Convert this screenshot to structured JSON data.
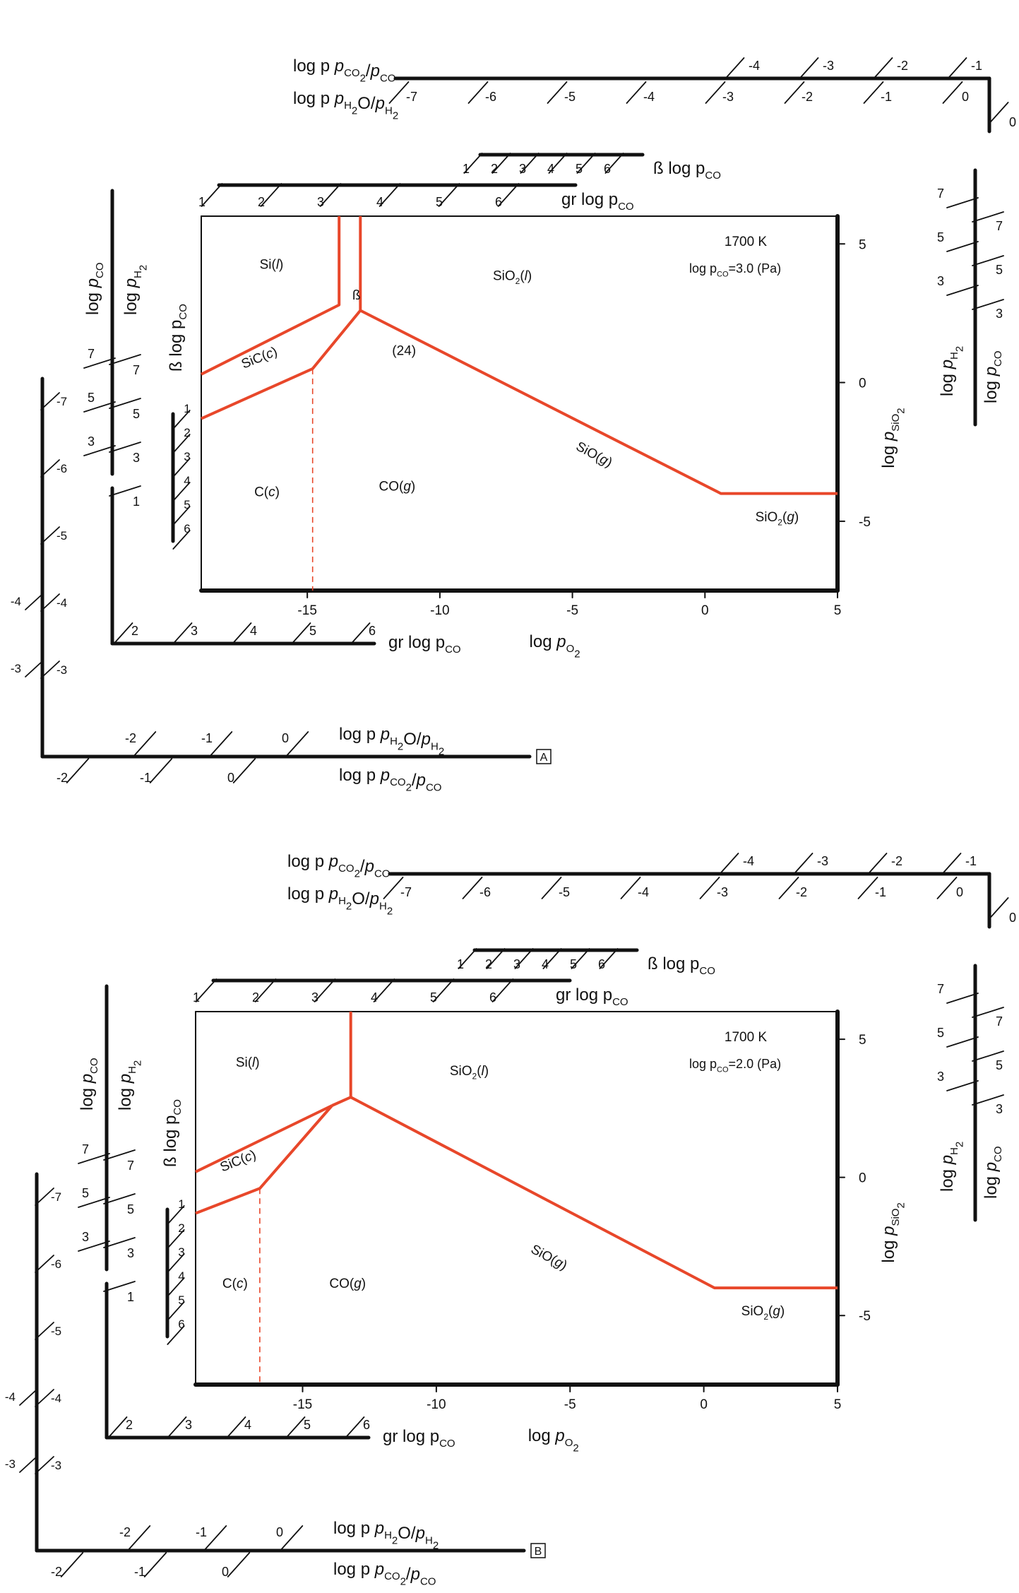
{
  "panels": [
    {
      "letter": "A",
      "temperature": "1700 K",
      "pco_condition": "log p",
      "pco_condition_sub": "CO",
      "pco_condition_value": "=3.0 (Pa)",
      "phases": [
        {
          "key": "si",
          "text": "Si(",
          "italic": "l",
          "tail": ")"
        },
        {
          "key": "sio2l",
          "text": "SiO",
          "sub": "2",
          "text2": "(",
          "italic": "l",
          "tail": ")"
        },
        {
          "key": "sic",
          "text": "SiC(",
          "italic": "c",
          "tail": ")"
        },
        {
          "key": "beta",
          "text": "ß"
        },
        {
          "key": "n24",
          "text": "(24)"
        },
        {
          "key": "sio",
          "text": "SiO(",
          "italic": "g",
          "tail": ")"
        },
        {
          "key": "cc",
          "text": "C(",
          "italic": "c",
          "tail": ")"
        },
        {
          "key": "cog",
          "text": "CO(",
          "italic": "g",
          "tail": ")"
        },
        {
          "key": "sio2g",
          "text": "SiO",
          "sub": "2",
          "text2": "(",
          "italic": "g",
          "tail": ")"
        }
      ],
      "x_ticks": [
        "-15",
        "-10",
        "-5",
        "0",
        "5"
      ],
      "y_ticks": [
        "5",
        "0",
        "-5"
      ],
      "x_axis_label": "log p",
      "x_axis_sub": "O2",
      "y_axis_label": "log p",
      "y_axis_sub": "SiO2",
      "gr_top_ticks": [
        "1",
        "2",
        "3",
        "4",
        "5",
        "6"
      ],
      "gr_top_label": "gr log p",
      "beta_top_ticks": [
        "1",
        "2",
        "3",
        "4",
        "5",
        "6"
      ],
      "beta_top_label": "ß log p",
      "top_co2_label": "log p",
      "top_co2_ticks": [
        "-4",
        "-3",
        "-2",
        "-1"
      ],
      "top_h2o_label": "log p",
      "top_h2o_ticks": [
        "-7",
        "-6",
        "-5",
        "-4",
        "-3",
        "-2",
        "-1",
        "0"
      ],
      "right_ticks_a": [
        "7",
        "5",
        "3"
      ],
      "right_ticks_b": [
        "7",
        "5",
        "3"
      ],
      "right_corner_tick": "0",
      "left_co_ticks": [
        "7",
        "5",
        "3"
      ],
      "left_h2_ticks": [
        "7",
        "5",
        "3",
        "1"
      ],
      "left_beta_ticks": [
        "1",
        "2",
        "3",
        "4",
        "5",
        "6"
      ],
      "left_beta_label": "ß log p",
      "bottom_gr_ticks": [
        "2",
        "3",
        "4",
        "5",
        "6"
      ],
      "bottom_gr_label": "gr log p",
      "far_left_ticks": [
        "-7",
        "-6",
        "-5",
        "-4",
        "-3"
      ],
      "far_left_outer_ticks": [
        "-4",
        "-3"
      ],
      "bottom_h2o_ticks": [
        "-2",
        "-1",
        "0"
      ],
      "bottom_co2_ticks": [
        "-2",
        "-1",
        "0"
      ],
      "label_co": "CO",
      "label_h2": "H2",
      "label_pco_ratio": "log p",
      "label_h2o_ratio": "log p"
    },
    {
      "letter": "B",
      "temperature": "1700 K",
      "pco_condition": "log p",
      "pco_condition_sub": "CO",
      "pco_condition_value": "=2.0 (Pa)",
      "phases": [
        {
          "key": "si",
          "text": "Si(",
          "italic": "l",
          "tail": ")"
        },
        {
          "key": "sio2l",
          "text": "SiO",
          "sub": "2",
          "text2": "(",
          "italic": "l",
          "tail": ")"
        },
        {
          "key": "sic",
          "text": "SiC(",
          "italic": "c",
          "tail": ")"
        },
        {
          "key": "sio",
          "text": "SiO(",
          "italic": "g",
          "tail": ")"
        },
        {
          "key": "cc",
          "text": "C(",
          "italic": "c",
          "tail": ")"
        },
        {
          "key": "cog",
          "text": "CO(",
          "italic": "g",
          "tail": ")"
        },
        {
          "key": "sio2g",
          "text": "SiO",
          "sub": "2",
          "text2": "(",
          "italic": "g",
          "tail": ")"
        }
      ],
      "x_ticks": [
        "-15",
        "-10",
        "-5",
        "0",
        "5"
      ],
      "y_ticks": [
        "5",
        "0",
        "-5"
      ],
      "x_axis_label": "log p",
      "x_axis_sub": "O2",
      "y_axis_label": "log p",
      "y_axis_sub": "SiO2",
      "gr_top_ticks": [
        "1",
        "2",
        "3",
        "4",
        "5",
        "6"
      ],
      "gr_top_label": "gr log p",
      "beta_top_ticks": [
        "1",
        "2",
        "3",
        "4",
        "5",
        "6"
      ],
      "beta_top_label": "ß log p",
      "top_co2_label": "log p",
      "top_co2_ticks": [
        "-4",
        "-3",
        "-2",
        "-1"
      ],
      "top_h2o_label": "log p",
      "top_h2o_ticks": [
        "-7",
        "-6",
        "-5",
        "-4",
        "-3",
        "-2",
        "-1",
        "0"
      ],
      "right_ticks_a": [
        "7",
        "5",
        "3"
      ],
      "right_ticks_b": [
        "7",
        "5",
        "3"
      ],
      "right_corner_tick": "0",
      "left_co_ticks": [
        "7",
        "5",
        "3"
      ],
      "left_h2_ticks": [
        "7",
        "5",
        "3",
        "1"
      ],
      "left_beta_ticks": [
        "1",
        "2",
        "3",
        "4",
        "5",
        "6"
      ],
      "left_beta_label": "ß log p",
      "bottom_gr_ticks": [
        "2",
        "3",
        "4",
        "5",
        "6"
      ],
      "bottom_gr_label": "gr log p",
      "far_left_ticks": [
        "-7",
        "-6",
        "-5",
        "-4",
        "-3"
      ],
      "far_left_outer_ticks": [
        "-4",
        "-3"
      ],
      "bottom_h2o_ticks": [
        "-2",
        "-1",
        "0"
      ],
      "bottom_co2_ticks": [
        "-2",
        "-1",
        "0"
      ],
      "label_co": "CO",
      "label_h2": "H2",
      "label_pco_ratio": "log p",
      "label_h2o_ratio": "log p"
    }
  ],
  "colors": {
    "phase_boundary": "#e8472a",
    "axis": "#111111"
  }
}
